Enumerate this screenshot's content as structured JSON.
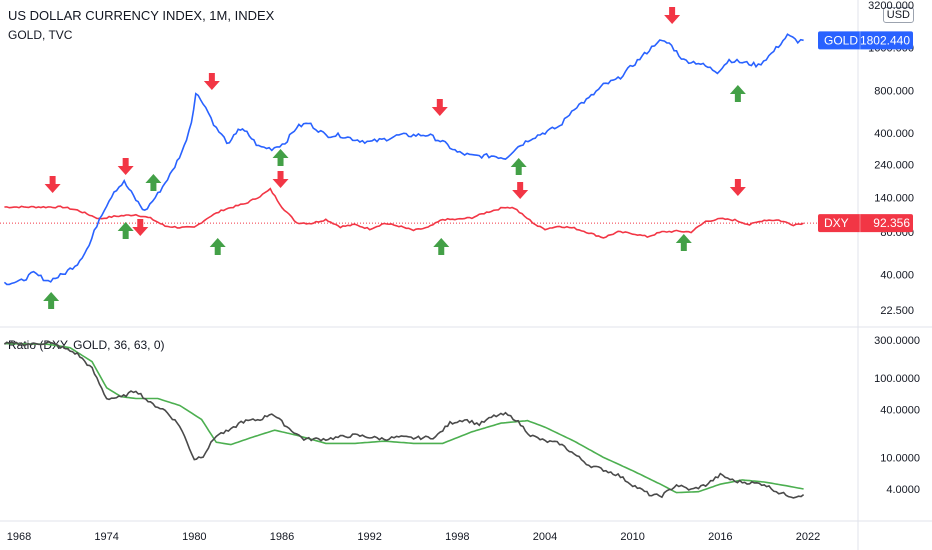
{
  "header": {
    "title": "US DOLLAR CURRENCY INDEX, 1M, INDEX",
    "subtitle": "GOLD, TVC",
    "currency_badge": "USD"
  },
  "indicator": {
    "title": "Ratio (DXY, GOLD, 36, 63, 0)"
  },
  "colors": {
    "gold": "#2962ff",
    "dxy": "#f23645",
    "ratio": "#4a4a4a",
    "ratio_ma": "#4caf50",
    "arrow_up": "#43a047",
    "arrow_down": "#f23645"
  },
  "chart_data": [
    {
      "type": "line",
      "title": "US DOLLAR CURRENCY INDEX, 1M, INDEX",
      "scale": "log",
      "ylim": [
        18,
        3200
      ],
      "x_ticks": [
        "1968",
        "1974",
        "1980",
        "1986",
        "1992",
        "1998",
        "2004",
        "2010",
        "2016",
        "2022"
      ],
      "y_ticks": [
        "3200.000",
        "1600.000",
        "800.000",
        "400.000",
        "240.000",
        "140.000",
        "80.000",
        "40.000",
        "22.500"
      ],
      "series": [
        {
          "name": "GOLD",
          "last_label": "1802.440",
          "points": [
            [
              1967,
              35
            ],
            [
              1968,
              35.3
            ],
            [
              1969,
              41
            ],
            [
              1970,
              36
            ],
            [
              1971,
              40
            ],
            [
              1972,
              48
            ],
            [
              1972.8,
              64
            ],
            [
              1973.5,
              100
            ],
            [
              1974.5,
              155
            ],
            [
              1975.2,
              180
            ],
            [
              1976.0,
              135
            ],
            [
              1976.6,
              112
            ],
            [
              1977.5,
              148
            ],
            [
              1978.5,
              215
            ],
            [
              1979.3,
              320
            ],
            [
              1979.8,
              480
            ],
            [
              1980.1,
              760
            ],
            [
              1980.6,
              660
            ],
            [
              1981.5,
              430
            ],
            [
              1982.4,
              330
            ],
            [
              1983.0,
              430
            ],
            [
              1983.6,
              400
            ],
            [
              1984.4,
              320
            ],
            [
              1985.3,
              310
            ],
            [
              1986.2,
              340
            ],
            [
              1987.0,
              440
            ],
            [
              1987.8,
              470
            ],
            [
              1989,
              385
            ],
            [
              1990,
              385
            ],
            [
              1991,
              360
            ],
            [
              1992,
              345
            ],
            [
              1993,
              360
            ],
            [
              1994,
              385
            ],
            [
              1995,
              385
            ],
            [
              1996,
              388
            ],
            [
              1997,
              345
            ],
            [
              1998,
              292
            ],
            [
              1999,
              275
            ],
            [
              2000.5,
              275
            ],
            [
              2001.3,
              266
            ],
            [
              2002,
              312
            ],
            [
              2003,
              365
            ],
            [
              2004,
              405
            ],
            [
              2005,
              445
            ],
            [
              2006,
              600
            ],
            [
              2007,
              700
            ],
            [
              2008,
              870
            ],
            [
              2009,
              960
            ],
            [
              2010,
              1200
            ],
            [
              2011.3,
              1600
            ],
            [
              2011.7,
              1780
            ],
            [
              2012.5,
              1720
            ],
            [
              2013.5,
              1300
            ],
            [
              2014.5,
              1250
            ],
            [
              2015.8,
              1080
            ],
            [
              2016.6,
              1310
            ],
            [
              2017.5,
              1260
            ],
            [
              2018.6,
              1200
            ],
            [
              2019.5,
              1450
            ],
            [
              2020.6,
              1950
            ],
            [
              2021.3,
              1780
            ],
            [
              2021.7,
              1802
            ]
          ]
        },
        {
          "name": "DXY",
          "last_label": "92.356",
          "points": [
            [
              1967,
              120
            ],
            [
              1969,
              120
            ],
            [
              1971,
              120
            ],
            [
              1972,
              114
            ],
            [
              1973.5,
              99
            ],
            [
              1974.5,
              103
            ],
            [
              1976,
              106
            ],
            [
              1977,
              100
            ],
            [
              1978,
              88
            ],
            [
              1979,
              86
            ],
            [
              1980,
              86
            ],
            [
              1981,
              102
            ],
            [
              1982,
              115
            ],
            [
              1983.5,
              127
            ],
            [
              1984.5,
              143
            ],
            [
              1985.2,
              160
            ],
            [
              1986,
              120
            ],
            [
              1987,
              93
            ],
            [
              1988,
              92
            ],
            [
              1989,
              98
            ],
            [
              1990,
              87
            ],
            [
              1991,
              90
            ],
            [
              1992,
              84
            ],
            [
              1993,
              92
            ],
            [
              1994,
              88
            ],
            [
              1995,
              82
            ],
            [
              1996,
              86
            ],
            [
              1997,
              98
            ],
            [
              1998,
              98
            ],
            [
              1999,
              101
            ],
            [
              2000,
              110
            ],
            [
              2001.3,
              120
            ],
            [
              2001.9,
              118
            ],
            [
              2002.6,
              103
            ],
            [
              2003.5,
              88
            ],
            [
              2004,
              84
            ],
            [
              2005,
              88
            ],
            [
              2006,
              85
            ],
            [
              2007,
              79
            ],
            [
              2008,
              73
            ],
            [
              2009,
              80
            ],
            [
              2010,
              78
            ],
            [
              2011,
              74
            ],
            [
              2012,
              80
            ],
            [
              2013,
              81
            ],
            [
              2014,
              80
            ],
            [
              2015,
              95
            ],
            [
              2016,
              99
            ],
            [
              2017,
              97
            ],
            [
              2018,
              90
            ],
            [
              2019,
              97
            ],
            [
              2020,
              97
            ],
            [
              2021,
              90
            ],
            [
              2021.7,
              92.4
            ]
          ]
        }
      ],
      "markers": {
        "down": [
          1970.3,
          1975.3,
          1976.3,
          1981.2,
          1985.9,
          1996.8,
          2002.3,
          2012.7,
          2017.2
        ],
        "up": [
          1970.2,
          1975.3,
          1977.2,
          1981.6,
          1985.9,
          1996.9,
          2002.2,
          2013.5,
          2017.2
        ]
      }
    },
    {
      "type": "line",
      "title": "Ratio (DXY, GOLD, 36, 63, 0)",
      "scale": "log",
      "ylim": [
        2.2,
        330
      ],
      "y_ticks": [
        "300.0000",
        "100.0000",
        "40.0000",
        "10.0000",
        "4.0000"
      ],
      "series": [
        {
          "name": "Ratio",
          "points": [
            [
              1967,
              270
            ],
            [
              1969,
              265
            ],
            [
              1970,
              280
            ],
            [
              1971,
              240
            ],
            [
              1972,
              200
            ],
            [
              1973,
              130
            ],
            [
              1974,
              55
            ],
            [
              1975,
              57
            ],
            [
              1976,
              70
            ],
            [
              1977,
              48
            ],
            [
              1978,
              39
            ],
            [
              1979,
              25
            ],
            [
              1980,
              9.5
            ],
            [
              1980.6,
              10.5
            ],
            [
              1981.5,
              19
            ],
            [
              1982.5,
              22
            ],
            [
              1983.2,
              28
            ],
            [
              1984.5,
              30
            ],
            [
              1985.3,
              36
            ],
            [
              1986.5,
              23
            ],
            [
              1987.5,
              17
            ],
            [
              1989,
              17
            ],
            [
              1990,
              18
            ],
            [
              1991,
              19
            ],
            [
              1992,
              18
            ],
            [
              1993,
              17
            ],
            [
              1994,
              18
            ],
            [
              1995,
              17.5
            ],
            [
              1996.5,
              18
            ],
            [
              1997.5,
              27
            ],
            [
              1998.5,
              30
            ],
            [
              1999.5,
              26
            ],
            [
              2000.5,
              33
            ],
            [
              2001.3,
              35
            ],
            [
              2002,
              30
            ],
            [
              2003,
              19
            ],
            [
              2004,
              16
            ],
            [
              2005,
              15
            ],
            [
              2006,
              11
            ],
            [
              2007,
              8
            ],
            [
              2008,
              7
            ],
            [
              2009,
              6
            ],
            [
              2010,
              4.5
            ],
            [
              2011.3,
              3.3
            ],
            [
              2012,
              3.3
            ],
            [
              2013,
              4.5
            ],
            [
              2014,
              3.9
            ],
            [
              2015,
              4.5
            ],
            [
              2016,
              6
            ],
            [
              2017,
              5
            ],
            [
              2018,
              4.8
            ],
            [
              2019,
              4.6
            ],
            [
              2020,
              3.6
            ],
            [
              2021,
              3.2
            ],
            [
              2021.7,
              3.4
            ]
          ]
        },
        {
          "name": "MA",
          "points": [
            [
              1967,
              270
            ],
            [
              1970,
              265
            ],
            [
              1971.5,
              240
            ],
            [
              1973,
              160
            ],
            [
              1974,
              75
            ],
            [
              1975,
              58
            ],
            [
              1976,
              55
            ],
            [
              1977.5,
              55
            ],
            [
              1979,
              45
            ],
            [
              1980.5,
              30
            ],
            [
              1981.5,
              15.5
            ],
            [
              1982.5,
              14.5
            ],
            [
              1984,
              18
            ],
            [
              1985.5,
              22
            ],
            [
              1987,
              19
            ],
            [
              1989,
              15
            ],
            [
              1991,
              15
            ],
            [
              1993,
              16
            ],
            [
              1995,
              15
            ],
            [
              1997,
              15
            ],
            [
              1999,
              21
            ],
            [
              2001,
              27
            ],
            [
              2002.8,
              29
            ],
            [
              2004,
              24
            ],
            [
              2006,
              16
            ],
            [
              2008,
              10
            ],
            [
              2010,
              6.8
            ],
            [
              2012,
              4.5
            ],
            [
              2013,
              3.6
            ],
            [
              2014.5,
              3.7
            ],
            [
              2016,
              4.6
            ],
            [
              2017.5,
              5.2
            ],
            [
              2019,
              4.9
            ],
            [
              2020.5,
              4.4
            ],
            [
              2021.7,
              4.0
            ]
          ]
        }
      ]
    }
  ]
}
